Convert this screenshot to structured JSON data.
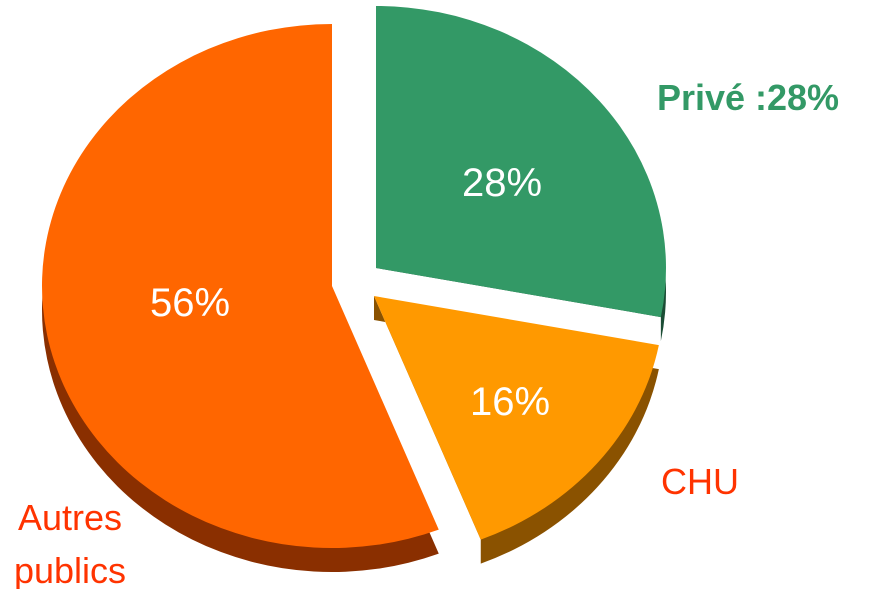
{
  "chart_data": {
    "type": "pie",
    "title": "",
    "slices": [
      {
        "label": "Privé :28%",
        "value": 28,
        "value_label": "28%",
        "color": "#339966",
        "side_color": "#1b4d35",
        "label_color": "#339966",
        "label_bold": true,
        "exploded": true
      },
      {
        "label": "CHU",
        "value": 16,
        "value_label": "16%",
        "color": "#ff9900",
        "side_color": "#8a5200",
        "label_color": "#ff3300",
        "label_bold": false,
        "exploded": true
      },
      {
        "label": "Autres publics",
        "value": 56,
        "value_label": "56%",
        "color": "#ff6600",
        "side_color": "#8a2f00",
        "label_color": "#ff3300",
        "label_bold": false,
        "exploded": true
      }
    ],
    "legend": "none",
    "style": "3d-exploded"
  }
}
